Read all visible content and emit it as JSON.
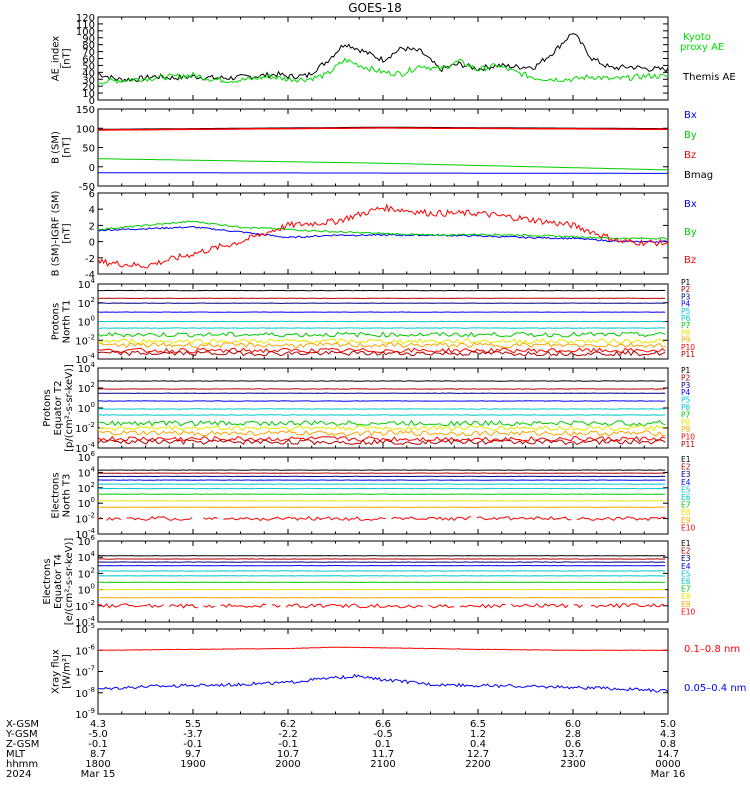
{
  "title": "GOES-18",
  "colors": {
    "black": "#000000",
    "red": "#ff0000",
    "green": "#00e000",
    "blue": "#0000ff",
    "dkred": "#b00000",
    "navy": "#000080",
    "cyan": "#00c8c8",
    "lgreen": "#22dd22",
    "yellow": "#e6e600",
    "orange": "#ffa500",
    "lcyan": "#88eeff",
    "olive": "#9ab000"
  },
  "panels": [
    {
      "id": "ae",
      "ylabel": [
        "AE_index",
        "[nT]"
      ],
      "ticks": [
        "0",
        "10",
        "20",
        "30",
        "40",
        "50",
        "60",
        "70",
        "80",
        "90",
        "100",
        "110",
        "120"
      ],
      "legend": [
        {
          "text": "Kyoto",
          "color": "#00dd00"
        },
        {
          "text": "proxy AE",
          "color": "#00dd00"
        },
        {
          "text": "Themis AE",
          "color": "#000000"
        }
      ]
    },
    {
      "id": "bsm",
      "ylabel": [
        "B (SM)",
        "[nT]"
      ],
      "ticks": [
        "-50",
        "0",
        "50",
        "100",
        "150"
      ],
      "legend": [
        {
          "text": "Bx",
          "color": "#0000ff"
        },
        {
          "text": "By",
          "color": "#00cc00"
        },
        {
          "text": "Bz",
          "color": "#ff0000"
        },
        {
          "text": "Bmag",
          "color": "#000000"
        }
      ]
    },
    {
      "id": "bigrf",
      "ylabel": [
        "B (SM)-IGRF (SM)",
        "[nT]"
      ],
      "ticks": [
        "-4",
        "-2",
        "0",
        "2",
        "4",
        "6"
      ],
      "legend": [
        {
          "text": "Bx",
          "color": "#0000ff"
        },
        {
          "text": "By",
          "color": "#00cc00"
        },
        {
          "text": "Bz",
          "color": "#ff0000"
        }
      ]
    },
    {
      "id": "pn",
      "ylabel": [
        "Protons",
        "North T1"
      ],
      "ticks": [
        {
          "b": "10",
          "e": "-4"
        },
        {
          "b": "10",
          "e": "-2"
        },
        {
          "b": "10",
          "e": "0"
        },
        {
          "b": "10",
          "e": "2"
        },
        {
          "b": "10",
          "e": "4"
        }
      ],
      "legend": [
        "P1",
        "P2",
        "P3",
        "P4",
        "P5",
        "P6",
        "P7",
        "P8",
        "P9",
        "P10",
        "P11"
      ]
    },
    {
      "id": "pe",
      "ylabel": [
        "Protons",
        "Equator T2",
        "[p/(cm²-s-sr-keV)]"
      ],
      "ticks": [
        {
          "b": "10",
          "e": "-4"
        },
        {
          "b": "10",
          "e": "-2"
        },
        {
          "b": "10",
          "e": "0"
        },
        {
          "b": "10",
          "e": "2"
        },
        {
          "b": "10",
          "e": "4"
        }
      ],
      "legend": [
        "P1",
        "P2",
        "P3",
        "P4",
        "P5",
        "P6",
        "P7",
        "P8",
        "P9",
        "P10",
        "P11"
      ]
    },
    {
      "id": "en",
      "ylabel": [
        "Electrons",
        "North T3"
      ],
      "ticks": [
        {
          "b": "10",
          "e": "-4"
        },
        {
          "b": "10",
          "e": "-2"
        },
        {
          "b": "10",
          "e": "0"
        },
        {
          "b": "10",
          "e": "2"
        },
        {
          "b": "10",
          "e": "4"
        },
        {
          "b": "10",
          "e": "6"
        }
      ],
      "legend": [
        "E1",
        "E2",
        "E3",
        "E4",
        "E5",
        "E6",
        "E7",
        "E8",
        "E9",
        "E10"
      ]
    },
    {
      "id": "ee",
      "ylabel": [
        "Electrons",
        "Equator T4",
        "[e/(cm²-s-sr-keV)]"
      ],
      "ticks": [
        {
          "b": "10",
          "e": "-4"
        },
        {
          "b": "10",
          "e": "-2"
        },
        {
          "b": "10",
          "e": "0"
        },
        {
          "b": "10",
          "e": "2"
        },
        {
          "b": "10",
          "e": "4"
        },
        {
          "b": "10",
          "e": "6"
        }
      ],
      "legend": [
        "E1",
        "E2",
        "E3",
        "E4",
        "E5",
        "E6",
        "E7",
        "E8",
        "E9",
        "E10"
      ]
    },
    {
      "id": "xray",
      "ylabel": [
        "Xray flux",
        "[W/m²]"
      ],
      "ticks": [
        {
          "b": "10",
          "e": "-9"
        },
        {
          "b": "10",
          "e": "-8"
        },
        {
          "b": "10",
          "e": "-7"
        },
        {
          "b": "10",
          "e": "-6"
        },
        {
          "b": "10",
          "e": "-5"
        }
      ],
      "legend": [
        {
          "text": "0.1–0.8 nm",
          "color": "#ff0000"
        },
        {
          "text": "0.05–0.4 nm",
          "color": "#0000ff"
        }
      ]
    }
  ],
  "proton_colors": [
    "#000000",
    "#b00000",
    "#000080",
    "#0000ff",
    "#00c8c8",
    "#00c8c8",
    "#00cc00",
    "#e6e600",
    "#ffa500",
    "#ff0000",
    "#b00000"
  ],
  "electron_colors": [
    "#000000",
    "#b00000",
    "#000080",
    "#0000ff",
    "#00c8c8",
    "#00c8c8",
    "#00cc00",
    "#e6e600",
    "#ffa500",
    "#ff0000"
  ],
  "axis": {
    "row_labels": [
      "X-GSM",
      "Y-GSM",
      "Z-GSM",
      "MLT",
      "hhmm",
      "2024"
    ],
    "columns": [
      [
        "4.3",
        "-5.0",
        "-0.1",
        "8.7",
        "1800",
        "Mar 15"
      ],
      [
        "5.5",
        "-3.7",
        "-0.1",
        "9.7",
        "1900",
        ""
      ],
      [
        "6.2",
        "-2.2",
        "-0.1",
        "10.7",
        "2000",
        ""
      ],
      [
        "6.6",
        "-0.5",
        "0.1",
        "11.7",
        "2100",
        ""
      ],
      [
        "6.5",
        "1.2",
        "0.4",
        "12.7",
        "2200",
        ""
      ],
      [
        "6.0",
        "2.8",
        "0.6",
        "13.7",
        "2300",
        ""
      ],
      [
        "5.0",
        "4.3",
        "0.8",
        "14.7",
        "0000",
        "Mar 16"
      ]
    ]
  },
  "chart_data": {
    "type": "line",
    "title": "GOES-18",
    "x_range": [
      "2024-03-15 18:00",
      "2024-03-16 00:00"
    ],
    "x_ticks": [
      "1800",
      "1900",
      "2000",
      "2100",
      "2200",
      "2300",
      "0000"
    ],
    "panels": [
      {
        "ylabel": "AE_index [nT]",
        "ylim": [
          0,
          120
        ],
        "series": [
          {
            "name": "Themis AE",
            "color": "#000000",
            "x": [
              0,
              0.2,
              0.4,
              0.6,
              0.8,
              1.0,
              1.2,
              1.4,
              1.6,
              1.8,
              1.9,
              2.0,
              2.2,
              2.4,
              2.6,
              2.8,
              3.0,
              3.2,
              3.4,
              3.6,
              3.8,
              4.0,
              4.2,
              4.4,
              4.6,
              4.8,
              5.0,
              5.2,
              5.4,
              5.6,
              5.8,
              6.0
            ],
            "y": [
              38,
              30,
              30,
              34,
              32,
              34,
              32,
              32,
              34,
              36,
              37,
              34,
              35,
              55,
              82,
              70,
              58,
              75,
              70,
              44,
              52,
              45,
              50,
              48,
              48,
              70,
              98,
              60,
              46,
              48,
              45,
              44
            ]
          },
          {
            "name": "Kyoto proxy AE",
            "color": "#00dd00",
            "x": [
              0,
              0.2,
              0.4,
              0.6,
              0.8,
              1.0,
              1.2,
              1.4,
              1.6,
              1.8,
              2.0,
              2.2,
              2.4,
              2.6,
              2.8,
              3.0,
              3.2,
              3.4,
              3.6,
              3.8,
              4.0,
              4.2,
              4.4,
              4.6,
              4.8,
              5.0,
              5.2,
              5.4,
              5.6,
              5.8,
              6.0
            ],
            "y": [
              26,
              28,
              30,
              32,
              34,
              36,
              30,
              28,
              30,
              34,
              30,
              30,
              36,
              58,
              48,
              40,
              38,
              50,
              44,
              56,
              44,
              50,
              40,
              32,
              30,
              30,
              34,
              30,
              32,
              35,
              34
            ]
          }
        ]
      },
      {
        "ylabel": "B (SM) [nT]",
        "ylim": [
          -60,
          160
        ],
        "series": [
          {
            "name": "Bmag",
            "color": "#000000",
            "x": [
              0,
              3,
              6
            ],
            "y": [
              102,
              108,
              104
            ]
          },
          {
            "name": "Bz",
            "color": "#ff0000",
            "x": [
              0,
              3,
              6
            ],
            "y": [
              100,
              106,
              102
            ]
          },
          {
            "name": "By",
            "color": "#00cc00",
            "x": [
              0,
              3,
              6
            ],
            "y": [
              18,
              5,
              -14
            ]
          },
          {
            "name": "Bx",
            "color": "#0000ff",
            "x": [
              0,
              3,
              6
            ],
            "y": [
              -22,
              -23,
              -24
            ]
          }
        ]
      },
      {
        "ylabel": "B (SM)-IGRF (SM) [nT]",
        "ylim": [
          -4,
          6
        ],
        "series": [
          {
            "name": "Bx",
            "color": "#0000ff",
            "x": [
              0,
              0.5,
              1,
              1.5,
              2,
              2.5,
              3,
              3.5,
              4,
              4.5,
              5,
              5.5,
              6
            ],
            "y": [
              1.4,
              1.6,
              1.8,
              1.2,
              0.5,
              0.8,
              0.8,
              0.8,
              0.7,
              0.5,
              0.4,
              0,
              0
            ]
          },
          {
            "name": "By",
            "color": "#00cc00",
            "x": [
              0,
              0.5,
              1,
              1.5,
              2,
              2.5,
              3,
              3.5,
              4,
              4.5,
              5,
              5.5,
              6
            ],
            "y": [
              1.5,
              2.0,
              2.5,
              1.8,
              1.5,
              1.2,
              1.0,
              0.8,
              0.9,
              0.8,
              0.6,
              0.4,
              0.4
            ]
          },
          {
            "name": "Bz",
            "color": "#ff0000",
            "x": [
              0,
              0.5,
              1,
              1.5,
              2,
              2.5,
              3,
              3.5,
              4,
              4.5,
              5,
              5.5,
              6
            ],
            "y": [
              -2.5,
              -3,
              -1.5,
              0,
              2,
              2.5,
              4.2,
              3.5,
              3.5,
              2.8,
              2.0,
              0,
              -0.2
            ]
          }
        ]
      },
      {
        "ylabel": "Protons North T1",
        "yscale": "log",
        "ylim": [
          0.0001,
          10000.0
        ],
        "series": [
          {
            "name": "P1",
            "values": [
              2000
            ]
          },
          {
            "name": "P2",
            "values": [
              300
            ]
          },
          {
            "name": "P3",
            "values": [
              90
            ]
          },
          {
            "name": "P4",
            "values": [
              10
            ]
          },
          {
            "name": "P5",
            "values": [
              1
            ]
          },
          {
            "name": "P6",
            "values": [
              0.2
            ]
          },
          {
            "name": "P7",
            "values": [
              0.04
            ]
          },
          {
            "name": "P8",
            "values": [
              0.008
            ]
          },
          {
            "name": "P9",
            "values": [
              0.003
            ]
          },
          {
            "name": "P10",
            "values": [
              0.0008
            ]
          },
          {
            "name": "P11",
            "values": [
              0.0004
            ]
          }
        ]
      },
      {
        "ylabel": "Protons Equator T2 [p/(cm²-s-sr-keV)]",
        "yscale": "log",
        "ylim": [
          1e-05,
          10000.0
        ],
        "series": [
          {
            "name": "P1",
            "values": [
              500
            ]
          },
          {
            "name": "P2",
            "values": [
              80
            ]
          },
          {
            "name": "P3",
            "values": [
              30
            ]
          },
          {
            "name": "P4",
            "values": [
              5
            ]
          },
          {
            "name": "P5",
            "values": [
              0.8
            ]
          },
          {
            "name": "P6",
            "values": [
              0.2
            ]
          },
          {
            "name": "P7",
            "values": [
              0.03
            ]
          },
          {
            "name": "P8",
            "values": [
              0.01
            ]
          },
          {
            "name": "P9",
            "values": [
              0.003
            ]
          },
          {
            "name": "P10",
            "values": [
              0.0008
            ]
          },
          {
            "name": "P11",
            "values": [
              0.0004
            ]
          }
        ]
      },
      {
        "ylabel": "Electrons North T3",
        "yscale": "log",
        "ylim": [
          0.0001,
          1000000.0
        ],
        "series": [
          {
            "name": "E1",
            "values": [
              20000
            ]
          },
          {
            "name": "E2",
            "values": [
              8000
            ]
          },
          {
            "name": "E3",
            "values": [
              3000
            ]
          },
          {
            "name": "E4",
            "values": [
              1000
            ]
          },
          {
            "name": "E5",
            "values": [
              300
            ]
          },
          {
            "name": "E6",
            "values": [
              80
            ]
          },
          {
            "name": "E7",
            "values": [
              15
            ]
          },
          {
            "name": "E8",
            "values": [
              2
            ]
          },
          {
            "name": "E9",
            "values": [
              0.3
            ]
          },
          {
            "name": "E10",
            "values": [
              0.01
            ]
          }
        ]
      },
      {
        "ylabel": "Electrons Equator T4 [e/(cm²-s-sr-keV)]",
        "yscale": "log",
        "ylim": [
          0.0001,
          1000000.0
        ],
        "series": [
          {
            "name": "E1",
            "values": [
              15000
            ]
          },
          {
            "name": "E2",
            "values": [
              6000
            ]
          },
          {
            "name": "E3",
            "values": [
              2500
            ]
          },
          {
            "name": "E4",
            "values": [
              900
            ]
          },
          {
            "name": "E5",
            "values": [
              200
            ]
          },
          {
            "name": "E6",
            "values": [
              50
            ]
          },
          {
            "name": "E7",
            "values": [
              8
            ]
          },
          {
            "name": "E8",
            "values": [
              1
            ]
          },
          {
            "name": "E9",
            "values": [
              0.1
            ]
          },
          {
            "name": "E10",
            "values": [
              0.01
            ]
          }
        ]
      },
      {
        "ylabel": "Xray flux [W/m²]",
        "yscale": "log",
        "ylim": [
          1e-09,
          1e-05
        ],
        "series": [
          {
            "name": "0.1–0.8 nm",
            "color": "#ff0000",
            "x": [
              0,
              1,
              2,
              2.5,
              3,
              4,
              5,
              6
            ],
            "y": [
              1e-06,
              1.1e-06,
              1.2e-06,
              1.4e-06,
              1.3e-06,
              1.1e-06,
              1e-06,
              1e-06
            ]
          },
          {
            "name": "0.05–0.4 nm",
            "color": "#0000ff",
            "x": [
              0,
              0.5,
              1,
              1.5,
              2,
              2.5,
              2.7,
              3,
              3.5,
              4,
              4.5,
              5,
              5.5,
              6
            ],
            "y": [
              1.5e-08,
              2e-08,
              2.2e-08,
              2.5e-08,
              3e-08,
              5e-08,
              6e-08,
              4e-08,
              2.5e-08,
              2.2e-08,
              2e-08,
              1.8e-08,
              1.5e-08,
              1.2e-08
            ]
          }
        ]
      }
    ]
  }
}
